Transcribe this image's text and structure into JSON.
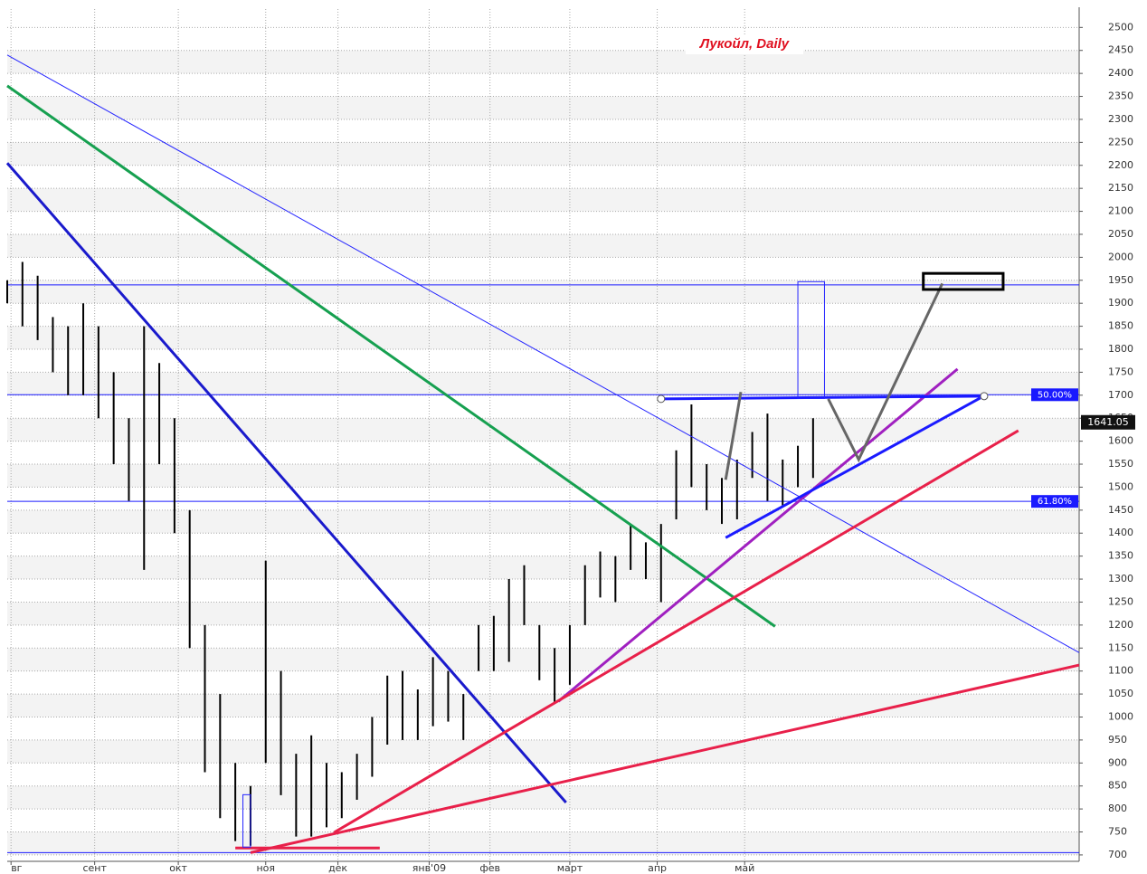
{
  "chart_data": {
    "type": "hlbar",
    "title": "Лукойл, Daily",
    "color": "#000000",
    "xlim": [
      0,
      282
    ],
    "ylim": [
      690,
      2540
    ],
    "grid": true,
    "xticks": [
      {
        "value": 1,
        "label": "вг"
      },
      {
        "value": 23,
        "label": "сент"
      },
      {
        "value": 45,
        "label": "окт"
      },
      {
        "value": 68,
        "label": "ноя"
      },
      {
        "value": 87,
        "label": "дек"
      },
      {
        "value": 111,
        "label": "янв'09"
      },
      {
        "value": 127,
        "label": "фев"
      },
      {
        "value": 148,
        "label": "март"
      },
      {
        "value": 171,
        "label": "апр"
      },
      {
        "value": 194,
        "label": "май"
      }
    ],
    "yticks": [
      700,
      750,
      800,
      850,
      900,
      950,
      1000,
      1050,
      1100,
      1150,
      1200,
      1250,
      1300,
      1350,
      1400,
      1450,
      1500,
      1550,
      1600,
      1650,
      1700,
      1750,
      1800,
      1850,
      1900,
      1950,
      2000,
      2050,
      2100,
      2150,
      2200,
      2250,
      2300,
      2350,
      2400,
      2450,
      2500
    ],
    "x": [
      0,
      4,
      8,
      12,
      16,
      20,
      24,
      28,
      32,
      36,
      40,
      44,
      48,
      52,
      56,
      60,
      64,
      68,
      72,
      76,
      80,
      84,
      88,
      92,
      96,
      100,
      104,
      108,
      112,
      116,
      120,
      124,
      128,
      132,
      136,
      140,
      144,
      148,
      152,
      156,
      160,
      164,
      168,
      172,
      176,
      180,
      184,
      188,
      192,
      196,
      200,
      204,
      208,
      212
    ],
    "high": [
      1950,
      1990,
      1960,
      1870,
      1850,
      1900,
      1850,
      1750,
      1650,
      1850,
      1770,
      1650,
      1450,
      1200,
      1050,
      900,
      850,
      1340,
      1100,
      920,
      960,
      900,
      880,
      920,
      1000,
      1090,
      1100,
      1060,
      1130,
      1100,
      1050,
      1200,
      1220,
      1300,
      1330,
      1200,
      1150,
      1200,
      1330,
      1360,
      1350,
      1420,
      1380,
      1420,
      1580,
      1680,
      1550,
      1520,
      1560,
      1620,
      1660,
      1560,
      1590,
      1650
    ],
    "low": [
      1900,
      1850,
      1820,
      1750,
      1700,
      1700,
      1650,
      1550,
      1470,
      1320,
      1550,
      1400,
      1150,
      880,
      780,
      730,
      720,
      900,
      830,
      740,
      740,
      760,
      780,
      820,
      870,
      940,
      950,
      950,
      980,
      990,
      950,
      1100,
      1100,
      1120,
      1200,
      1080,
      1030,
      1070,
      1200,
      1260,
      1250,
      1320,
      1300,
      1250,
      1430,
      1500,
      1450,
      1420,
      1430,
      1520,
      1470,
      1460,
      1500,
      1520
    ],
    "last_price": 1641.05,
    "levels": [
      {
        "value": 1940,
        "color": "#1a1aff"
      },
      {
        "value": 1701,
        "label": "50.00%",
        "color": "#1a1aff"
      },
      {
        "value": 1469,
        "label": "61.80%",
        "color": "#1a1aff"
      },
      {
        "value": 705,
        "color": "#1a1aff"
      }
    ],
    "trendlines": [
      {
        "color": "#2424ff",
        "style": "thin",
        "points": [
          [
            0,
            2440
          ],
          [
            282,
            1140
          ]
        ]
      },
      {
        "color": "#1a1acc",
        "style": "thick",
        "points": [
          [
            0,
            2205
          ],
          [
            147,
            814
          ]
        ]
      },
      {
        "color": "#16a050",
        "style": "thick",
        "points": [
          [
            0,
            2373
          ],
          [
            202,
            1197
          ]
        ]
      },
      {
        "color": "#a020c0",
        "style": "thick",
        "points": [
          [
            145,
            1034
          ],
          [
            250,
            1757
          ]
        ]
      },
      {
        "color": "#e8204a",
        "style": "thick",
        "points": [
          [
            64,
            705
          ],
          [
            282,
            1113
          ]
        ]
      },
      {
        "color": "#e8204a",
        "style": "thick",
        "points": [
          [
            86,
            749
          ],
          [
            266,
            1623
          ]
        ]
      },
      {
        "color": "#e8204a",
        "style": "thick",
        "points": [
          [
            60,
            715
          ],
          [
            98,
            715
          ]
        ]
      },
      {
        "color": "#1a1aff",
        "style": "thick",
        "points": [
          [
            189,
            1390
          ],
          [
            256,
            1694
          ]
        ]
      },
      {
        "color": "#1a1aff",
        "style": "thick",
        "points": [
          [
            172,
            1692
          ],
          [
            257,
            1698
          ]
        ]
      },
      {
        "color": "#666666",
        "style": "thick",
        "points": [
          [
            216,
            1692
          ],
          [
            224,
            1560
          ],
          [
            246,
            1943
          ]
        ]
      },
      {
        "color": "#666666",
        "style": "thick",
        "points": [
          [
            189,
            1516
          ],
          [
            193,
            1707
          ]
        ]
      }
    ],
    "boxes": [
      {
        "color": "#000000",
        "style": "thick",
        "x": [
          241,
          262
        ],
        "y": [
          1930,
          1965
        ]
      },
      {
        "color": "#2424ff",
        "style": "thin",
        "x": [
          208,
          215
        ],
        "y": [
          1693,
          1947
        ]
      },
      {
        "color": "#2424ff",
        "style": "thin",
        "x": [
          62,
          64
        ],
        "y": [
          717,
          831
        ]
      }
    ]
  }
}
